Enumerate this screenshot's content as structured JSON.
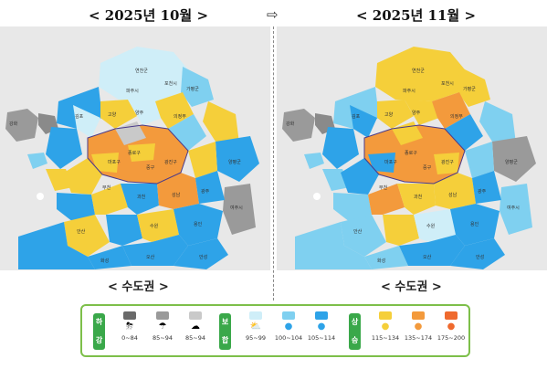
{
  "header": {
    "left_title": "< 2025년 10월 >",
    "right_title": "< 2025년 11월 >",
    "arrow": "⇨"
  },
  "maps": {
    "left_caption": "< 수도권 >",
    "right_caption": "< 수도권 >"
  },
  "legend": {
    "groups": [
      {
        "label_top": "하",
        "label_bottom": "강",
        "color": "#3aa84a"
      },
      {
        "label_top": "보",
        "label_bottom": "합",
        "color": "#3aa84a"
      },
      {
        "label_top": "상",
        "label_bottom": "승",
        "color": "#3aa84a"
      }
    ],
    "items": [
      {
        "range": "0~84",
        "color": "#6a6a6a",
        "icon": "storm-icon"
      },
      {
        "range": "85~94",
        "color": "#9a9a9a",
        "icon": "cloud-rain-icon"
      },
      {
        "range": "85~94",
        "color": "#c9c9c9",
        "icon": "cloud-icon"
      },
      {
        "range": "95~99",
        "color": "#cfeef8",
        "icon": "cloud-sun-icon"
      },
      {
        "range": "100~104",
        "color": "#7fd0f0",
        "icon": "sun-cloud-icon"
      },
      {
        "range": "105~114",
        "color": "#2ea3e8",
        "icon": "sun-small-icon"
      },
      {
        "range": "115~134",
        "color": "#f5cf3a",
        "icon": "sun-icon"
      },
      {
        "range": "135~174",
        "color": "#f39a3c",
        "icon": "sun-orange-icon"
      },
      {
        "range": "175~200",
        "color": "#ef6a2e",
        "icon": "sun-red-icon"
      }
    ]
  }
}
